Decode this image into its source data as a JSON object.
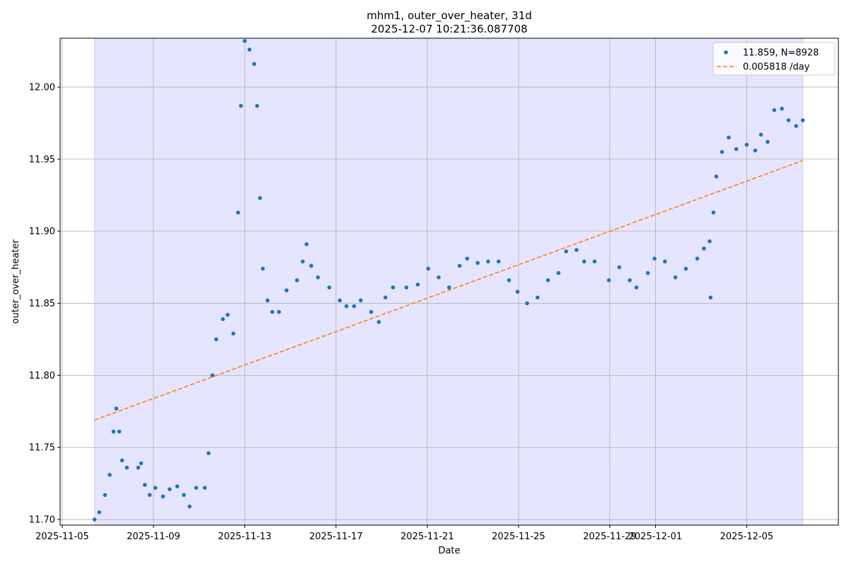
{
  "chart_data": {
    "type": "scatter",
    "title": "mhm1, outer_over_heater, 31d",
    "subtitle": "2025-12-07 10:21:36.087708",
    "xlabel": "Date",
    "ylabel": "outer_over_heater",
    "xlim": [
      "2025-11-04 21:50",
      "2025-12-09 00:25"
    ],
    "ylim": [
      11.6961,
      12.0339
    ],
    "xticks": [
      "2025-11-05",
      "2025-11-09",
      "2025-11-13",
      "2025-11-17",
      "2025-11-21",
      "2025-11-25",
      "2025-11-29",
      "2025-12-01",
      "2025-12-05"
    ],
    "yticks": [
      {
        "value": 11.7,
        "label": "11.70"
      },
      {
        "value": 11.75,
        "label": "11.75"
      },
      {
        "value": 11.8,
        "label": "11.80"
      },
      {
        "value": 11.85,
        "label": "11.85"
      },
      {
        "value": 11.9,
        "label": "11.90"
      },
      {
        "value": 11.95,
        "label": "11.95"
      },
      {
        "value": 12,
        "label": "12.00"
      }
    ],
    "grid": true,
    "legend": "upper right",
    "shaded_span": [
      "2025-11-06 10:00",
      "2025-12-07 11:00"
    ],
    "shade_color": "#0000ff",
    "series": [
      {
        "name": "11.859, N=8928",
        "color": "#1f77b4",
        "mark": "dot",
        "x": [
          "2025-11-06 10:00",
          "2025-11-06 15:00",
          "2025-11-06 21:00",
          "2025-11-07 02:00",
          "2025-11-07 06:00",
          "2025-11-07 09:00",
          "2025-11-07 12:00",
          "2025-11-07 15:00",
          "2025-11-07 20:00",
          "2025-11-08 08:00",
          "2025-11-08 11:00",
          "2025-11-08 15:00",
          "2025-11-08 20:00",
          "2025-11-09 02:00",
          "2025-11-09 10:00",
          "2025-11-09 17:00",
          "2025-11-10 01:00",
          "2025-11-10 08:00",
          "2025-11-10 14:00",
          "2025-11-10 21:00",
          "2025-11-11 06:00",
          "2025-11-11 10:00",
          "2025-11-11 14:00",
          "2025-11-11 18:00",
          "2025-11-12 01:00",
          "2025-11-12 06:00",
          "2025-11-12 12:00",
          "2025-11-12 17:00",
          "2025-11-12 20:00",
          "2025-11-13 00:00",
          "2025-11-13 05:00",
          "2025-11-13 10:00",
          "2025-11-13 13:00",
          "2025-11-13 16:00",
          "2025-11-13 19:00",
          "2025-11-14 00:00",
          "2025-11-14 05:00",
          "2025-11-14 12:00",
          "2025-11-14 20:00",
          "2025-11-15 07:00",
          "2025-11-15 13:00",
          "2025-11-15 17:00",
          "2025-11-15 22:00",
          "2025-11-16 05:00",
          "2025-11-16 17:00",
          "2025-11-17 04:00",
          "2025-11-17 11:00",
          "2025-11-17 19:00",
          "2025-11-18 02:00",
          "2025-11-18 13:00",
          "2025-11-18 21:00",
          "2025-11-19 04:00",
          "2025-11-19 12:00",
          "2025-11-20 02:00",
          "2025-11-20 14:00",
          "2025-11-21 01:00",
          "2025-11-21 12:00",
          "2025-11-21 23:00",
          "2025-11-22 10:00",
          "2025-11-22 18:00",
          "2025-11-23 05:00",
          "2025-11-23 16:00",
          "2025-11-24 03:00",
          "2025-11-24 14:00",
          "2025-11-24 23:00",
          "2025-11-25 09:00",
          "2025-11-25 20:00",
          "2025-11-26 07:00",
          "2025-11-26 18:00",
          "2025-11-27 02:00",
          "2025-11-27 13:00",
          "2025-11-27 21:00",
          "2025-11-28 08:00",
          "2025-11-28 23:00",
          "2025-11-29 10:00",
          "2025-11-29 21:00",
          "2025-11-30 04:00",
          "2025-11-30 16:00",
          "2025-11-30 23:00",
          "2025-12-01 10:00",
          "2025-12-01 21:00",
          "2025-12-02 08:00",
          "2025-12-02 20:00",
          "2025-12-03 03:00",
          "2025-12-03 09:00",
          "2025-12-03 10:00",
          "2025-12-03 13:00",
          "2025-12-03 16:00",
          "2025-12-03 22:00",
          "2025-12-04 05:00",
          "2025-12-04 13:00",
          "2025-12-05 00:00",
          "2025-12-05 09:00",
          "2025-12-05 15:00",
          "2025-12-05 22:00",
          "2025-12-06 05:00",
          "2025-12-06 13:00",
          "2025-12-06 20:00",
          "2025-12-07 04:00",
          "2025-12-07 11:00"
        ],
        "values": [
          11.7,
          11.705,
          11.717,
          11.731,
          11.761,
          11.777,
          11.761,
          11.741,
          11.736,
          11.736,
          11.739,
          11.724,
          11.717,
          11.722,
          11.716,
          11.721,
          11.723,
          11.717,
          11.709,
          11.722,
          11.722,
          11.746,
          11.8,
          11.825,
          11.839,
          11.842,
          11.829,
          11.913,
          11.987,
          12.032,
          12.026,
          12.016,
          11.987,
          11.923,
          11.874,
          11.852,
          11.844,
          11.844,
          11.859,
          11.866,
          11.879,
          11.891,
          11.876,
          11.868,
          11.861,
          11.852,
          11.848,
          11.848,
          11.852,
          11.844,
          11.837,
          11.854,
          11.861,
          11.861,
          11.863,
          11.874,
          11.868,
          11.861,
          11.876,
          11.881,
          11.878,
          11.879,
          11.879,
          11.866,
          11.858,
          11.85,
          11.854,
          11.866,
          11.871,
          11.886,
          11.887,
          11.879,
          11.879,
          11.866,
          11.875,
          11.866,
          11.861,
          11.871,
          11.881,
          11.879,
          11.868,
          11.874,
          11.881,
          11.888,
          11.893,
          11.854,
          11.913,
          11.938,
          11.955,
          11.965,
          11.957,
          11.96,
          11.956,
          11.967,
          11.962,
          11.984,
          11.985,
          11.977,
          11.973,
          11.977
        ]
      },
      {
        "name": "0.005818 /day",
        "color": "#ff7f0e",
        "mark": "dashed-line",
        "x": [
          "2025-11-06 10:00",
          "2025-12-07 11:00"
        ],
        "values": [
          11.769,
          11.949
        ]
      }
    ]
  }
}
